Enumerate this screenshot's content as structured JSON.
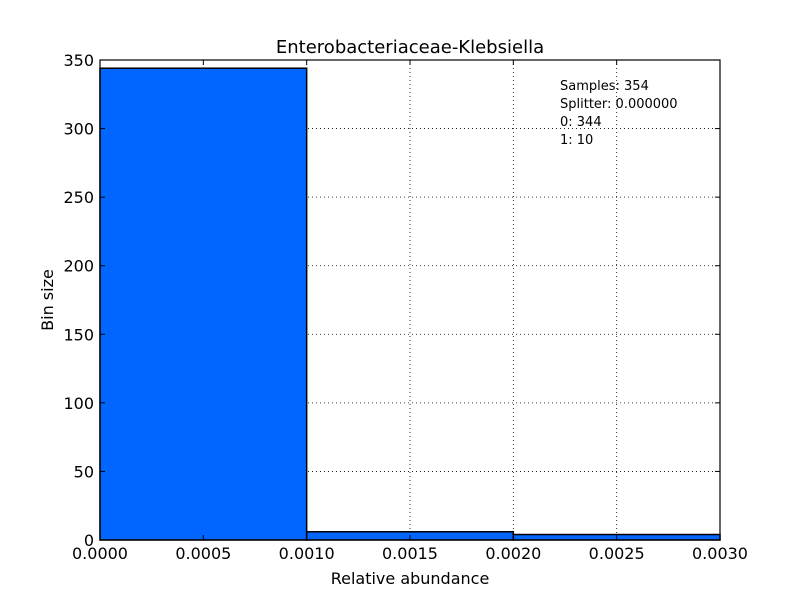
{
  "chart_data": {
    "type": "bar",
    "title": "Enterobacteriaceae-Klebsiella",
    "xlabel": "Relative abundance",
    "ylabel": "Bin size",
    "xlim": [
      0.0,
      0.003
    ],
    "ylim": [
      0,
      350
    ],
    "bins": [
      {
        "x0": 0.0,
        "x1": 0.001,
        "value": 344
      },
      {
        "x0": 0.001,
        "x1": 0.002,
        "value": 6
      },
      {
        "x0": 0.002,
        "x1": 0.003,
        "value": 4
      }
    ],
    "xticks": [
      "0.0000",
      "0.0005",
      "0.0010",
      "0.0015",
      "0.0020",
      "0.0025",
      "0.0030"
    ],
    "yticks": [
      "0",
      "50",
      "100",
      "150",
      "200",
      "250",
      "300",
      "350"
    ],
    "bar_color": "#0066ff",
    "grid": true,
    "annotations": [
      "Samples: 354",
      "Splitter: 0.000000",
      "0: 344",
      "1: 10"
    ],
    "annotation_position": "top-right"
  }
}
